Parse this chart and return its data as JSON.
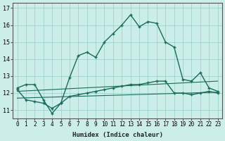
{
  "xlabel": "Humidex (Indice chaleur)",
  "xlim": [
    -0.5,
    23.5
  ],
  "ylim": [
    10.5,
    17.3
  ],
  "yticks": [
    11,
    12,
    13,
    14,
    15,
    16,
    17
  ],
  "xticks": [
    0,
    1,
    2,
    3,
    4,
    5,
    6,
    7,
    8,
    9,
    10,
    11,
    12,
    13,
    14,
    15,
    16,
    17,
    18,
    19,
    20,
    21,
    22,
    23
  ],
  "background_color": "#cceee8",
  "grid_color": "#99cccc",
  "line_color": "#1a6b5a",
  "main_x": [
    0,
    1,
    2,
    3,
    4,
    5,
    6,
    7,
    8,
    9,
    10,
    11,
    12,
    13,
    14,
    15,
    16,
    17,
    18,
    19,
    20,
    21,
    22,
    23
  ],
  "main_y": [
    12.3,
    12.5,
    12.5,
    11.6,
    10.8,
    11.4,
    12.9,
    14.2,
    14.4,
    14.1,
    15.0,
    15.5,
    16.0,
    16.6,
    15.9,
    16.2,
    16.1,
    15.0,
    14.7,
    12.8,
    12.7,
    13.2,
    12.3,
    12.1
  ],
  "lower_x": [
    0,
    1,
    2,
    3,
    4,
    5,
    6,
    7,
    8,
    9,
    10,
    11,
    12,
    13,
    14,
    15,
    16,
    17,
    18,
    19,
    20,
    21,
    22,
    23
  ],
  "lower_y": [
    12.2,
    11.6,
    11.5,
    11.4,
    11.1,
    11.4,
    11.8,
    11.9,
    12.0,
    12.1,
    12.2,
    12.3,
    12.4,
    12.5,
    12.5,
    12.6,
    12.7,
    12.7,
    12.0,
    12.0,
    11.9,
    12.0,
    12.1,
    12.0
  ],
  "trend1_x": [
    0,
    23
  ],
  "trend1_y": [
    12.1,
    12.7
  ],
  "trend2_x": [
    0,
    23
  ],
  "trend2_y": [
    11.7,
    12.05
  ]
}
